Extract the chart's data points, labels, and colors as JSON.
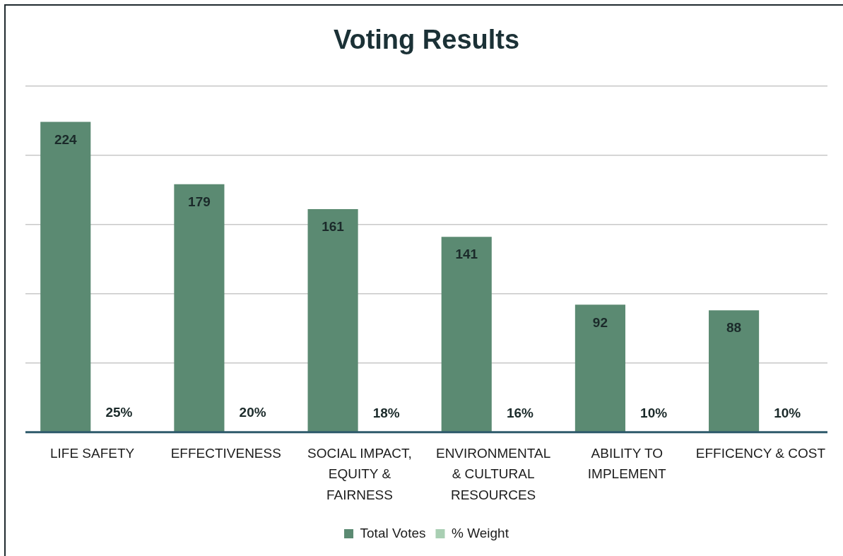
{
  "chart_data": {
    "type": "bar",
    "title": "Voting Results",
    "categories": [
      "LIFE SAFETY",
      "EFFECTIVENESS",
      "SOCIAL IMPACT,\nEQUITY &\nFAIRNESS",
      "ENVIRONMENTAL\n& CULTURAL\nRESOURCES",
      "ABILITY TO\nIMPLEMENT",
      "EFFICENCY & COST"
    ],
    "series": [
      {
        "name": "Total Votes",
        "color": "#5b8a72",
        "values": [
          224,
          179,
          161,
          141,
          92,
          88
        ],
        "value_labels": [
          "224",
          "179",
          "161",
          "141",
          "92",
          "88"
        ]
      },
      {
        "name": "% Weight",
        "color": "#a9cfb3",
        "values": [
          0.25,
          0.2,
          0.18,
          0.16,
          0.1,
          0.1
        ],
        "value_labels": [
          "25%",
          "20%",
          "18%",
          "16%",
          "10%",
          "10%"
        ]
      }
    ],
    "ylim": [
      0,
      250
    ],
    "yticks": [
      {
        "value": 0,
        "label": null
      },
      {
        "value": 50,
        "label": null
      },
      {
        "value": 100,
        "label": null
      },
      {
        "value": 150,
        "label": null
      },
      {
        "value": 200,
        "label": null
      },
      {
        "value": 250,
        "label": null
      }
    ],
    "grid": "y",
    "legend": "bottom",
    "tick_labels": "x"
  }
}
